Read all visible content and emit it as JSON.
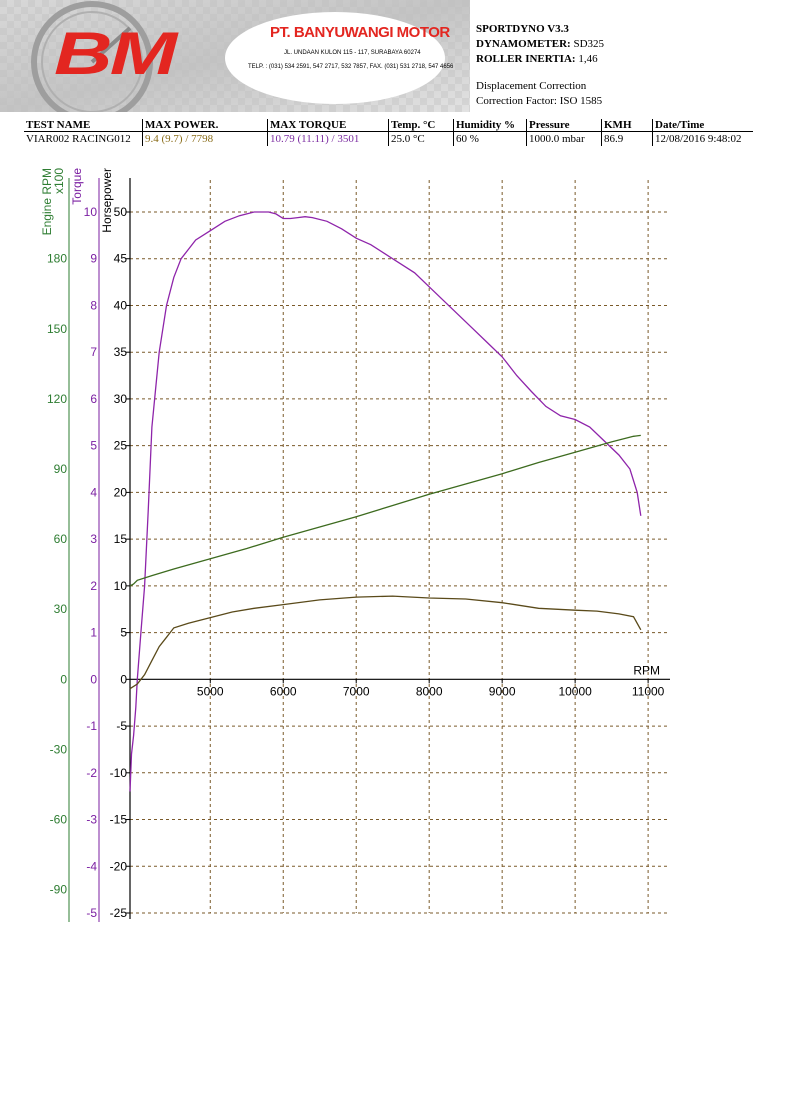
{
  "header": {
    "logo_text": "BM",
    "company_name": "PT. BANYUWANGI MOTOR",
    "company_address": "JL. UNDAAN KULON 115 - 117, SURABAYA 60274",
    "company_phone": "TELP. : (031) 534 2591, 547 2717, 532 7857, FAX. (031) 531 2718, 547 4656",
    "brand_red": "#e32620"
  },
  "dyno": {
    "product_label": "SPORTDYNO V3.3",
    "dynamometer_label": "DYNAMOMETER:",
    "dynamometer_value": "SD325",
    "roller_label": "ROLLER INERTIA:",
    "roller_value": "1,46",
    "correction_title": "Displacement Correction",
    "correction_factor": "Correction Factor: ISO 1585"
  },
  "summary": {
    "headers": [
      "TEST NAME",
      "MAX POWER.",
      "MAX TORQUE",
      "Temp. °C",
      "Humidity %",
      "Pressure",
      "KMH",
      "Date/Time"
    ],
    "values": [
      "VIAR002 RACING012",
      "9.4 (9.7) / 7798",
      "10.79 (11.11) / 3501",
      "25.0 °C",
      "60 %",
      "1000.0 mbar",
      "86.9",
      "12/08/2016 9:48:02"
    ],
    "value_colors": [
      "#000000",
      "#8a6d1a",
      "#7a2aa0",
      "#000000",
      "#000000",
      "#000000",
      "#000000",
      "#000000"
    ]
  },
  "chart_data": {
    "type": "line",
    "xlabel": "RPM",
    "x_ticks": [
      5000,
      6000,
      7000,
      8000,
      9000,
      10000,
      11000
    ],
    "xlim": [
      3900,
      11300
    ],
    "axes": {
      "engine_rpm": {
        "label": "Engine RPM",
        "multiplier": "x100",
        "ticks": [
          180,
          150,
          120,
          90,
          60,
          30,
          0,
          -30,
          -60,
          -90
        ],
        "color": "#2e7d32",
        "ylim": [
          -100,
          200
        ]
      },
      "torque": {
        "label": "Torque",
        "ticks": [
          10,
          9,
          8,
          7,
          6,
          5,
          4,
          3,
          2,
          1,
          0,
          -1,
          -2,
          -3,
          -4,
          -5
        ],
        "color": "#7b1fa2",
        "ylim": [
          -5,
          10
        ]
      },
      "horsepower": {
        "label": "Horsepower",
        "ticks": [
          50,
          45,
          40,
          35,
          30,
          25,
          20,
          15,
          10,
          5,
          0,
          -5,
          -10,
          -15,
          -20,
          -25
        ],
        "color": "#000000",
        "ylim": [
          -25,
          50
        ]
      }
    },
    "series": [
      {
        "axis": "horsepower",
        "color": "#8e24aa",
        "x": [
          3900,
          3920,
          3950,
          3980,
          4000,
          4050,
          4100,
          4150,
          4200,
          4300,
          4400,
          4500,
          4600,
          4700,
          4800,
          5000,
          5200,
          5400,
          5600,
          5700,
          5800,
          5900,
          6000,
          6100,
          6200,
          6300,
          6400,
          6600,
          6800,
          7000,
          7200,
          7400,
          7600,
          7800,
          8000,
          8200,
          8400,
          8600,
          8800,
          9000,
          9200,
          9400,
          9600,
          9800,
          10000,
          10200,
          10400,
          10600,
          10750,
          10850,
          10900
        ],
        "y": [
          -12,
          -8,
          -6,
          -3,
          0,
          5,
          10,
          18,
          27,
          35,
          40,
          43,
          45,
          46,
          47,
          48,
          49,
          49.6,
          50,
          50,
          50,
          49.8,
          49.3,
          49.3,
          49.4,
          49.5,
          49.4,
          49,
          48.2,
          47.2,
          46.5,
          45.5,
          44.5,
          43.5,
          42,
          40.5,
          39,
          37.5,
          36,
          34.5,
          32.5,
          30.8,
          29.2,
          28.2,
          27.8,
          27,
          25.5,
          24,
          22.5,
          20,
          17.5
        ]
      },
      {
        "axis": "horsepower",
        "color": "#3d6b1f",
        "x": [
          3900,
          3950,
          4000,
          4200,
          4500,
          5000,
          5500,
          6000,
          6500,
          7000,
          7500,
          8000,
          8500,
          9000,
          9500,
          10000,
          10500,
          10800,
          10900
        ],
        "y": [
          10,
          10.2,
          10.6,
          11.1,
          11.8,
          12.9,
          14,
          15.2,
          16.3,
          17.4,
          18.6,
          19.8,
          20.9,
          22,
          23.2,
          24.3,
          25.4,
          26,
          26.1
        ]
      },
      {
        "axis": "horsepower",
        "color": "#5a4a1a",
        "x": [
          3900,
          4000,
          4100,
          4200,
          4300,
          4400,
          4500,
          4700,
          5000,
          5300,
          5600,
          6000,
          6500,
          7000,
          7500,
          8000,
          8500,
          9000,
          9500,
          10000,
          10300,
          10600,
          10800,
          10900
        ],
        "y": [
          -1,
          -0.5,
          0.5,
          2,
          3.5,
          4.5,
          5.5,
          6,
          6.6,
          7.2,
          7.6,
          8,
          8.5,
          8.8,
          8.9,
          8.7,
          8.6,
          8.2,
          7.6,
          7.4,
          7.3,
          7,
          6.7,
          5.3
        ]
      }
    ]
  }
}
